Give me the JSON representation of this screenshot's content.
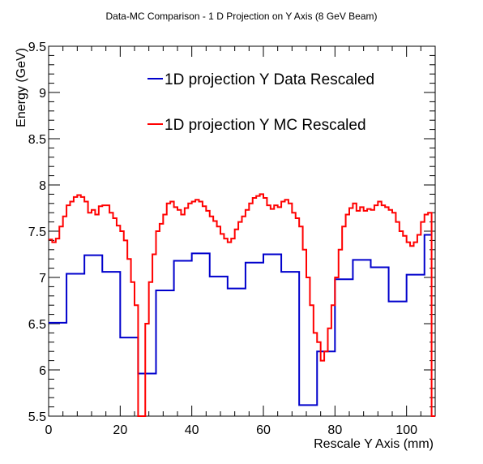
{
  "chart_data": {
    "type": "line",
    "title": "Data-MC Comparison - 1 D Projection on Y Axis (8 GeV Beam)",
    "xlabel": "Rescale Y Axis (mm)",
    "ylabel": "Energy (GeV)",
    "xlim": [
      0,
      108
    ],
    "ylim": [
      5.5,
      9.5
    ],
    "xticks": [
      0,
      20,
      40,
      60,
      80,
      100
    ],
    "yticks": [
      5.5,
      6,
      6.5,
      7,
      7.5,
      8,
      8.5,
      9,
      9.5
    ],
    "legend_position": "top-right",
    "grid": false,
    "series": [
      {
        "name": "1D projection Y Data Rescaled",
        "color": "#0000cc",
        "step": true,
        "edges": [
          0,
          5,
          10,
          15,
          20,
          25,
          30,
          35,
          40,
          45,
          50,
          55,
          60,
          65,
          70,
          75,
          80,
          85,
          90,
          95,
          100,
          105,
          107
        ],
        "values": [
          6.51,
          7.04,
          7.24,
          7.06,
          6.35,
          5.96,
          6.86,
          7.18,
          7.26,
          7.01,
          6.88,
          7.16,
          7.25,
          7.06,
          5.62,
          6.2,
          6.98,
          7.19,
          7.11,
          6.74,
          7.03,
          7.46
        ]
      },
      {
        "name": "1D projection Y MC Rescaled",
        "color": "#ff0000",
        "step": true,
        "bin_width": 1,
        "x_start": 0,
        "values": [
          7.41,
          7.38,
          7.42,
          7.55,
          7.66,
          7.78,
          7.82,
          7.87,
          7.89,
          7.87,
          7.82,
          7.7,
          7.73,
          7.68,
          7.77,
          7.78,
          7.78,
          7.7,
          7.64,
          7.56,
          7.5,
          7.4,
          7.2,
          6.95,
          6.7,
          5.5,
          5.5,
          6.5,
          6.95,
          7.25,
          7.5,
          7.58,
          7.68,
          7.8,
          7.82,
          7.76,
          7.73,
          7.68,
          7.75,
          7.8,
          7.82,
          7.84,
          7.82,
          7.77,
          7.72,
          7.66,
          7.61,
          7.55,
          7.47,
          7.42,
          7.38,
          7.42,
          7.52,
          7.6,
          7.66,
          7.73,
          7.8,
          7.86,
          7.88,
          7.9,
          7.86,
          7.78,
          7.74,
          7.78,
          7.76,
          7.82,
          7.84,
          7.8,
          7.7,
          7.64,
          7.55,
          7.3,
          7.0,
          6.7,
          6.4,
          6.3,
          6.1,
          6.2,
          6.45,
          6.7,
          7.0,
          7.3,
          7.55,
          7.68,
          7.75,
          7.8,
          7.72,
          7.76,
          7.72,
          7.74,
          7.73,
          7.78,
          7.82,
          7.78,
          7.76,
          7.73,
          7.7,
          7.6,
          7.5,
          7.45,
          7.38,
          7.34,
          7.38,
          7.46,
          7.6,
          7.68,
          7.7,
          5.5
        ]
      }
    ]
  }
}
